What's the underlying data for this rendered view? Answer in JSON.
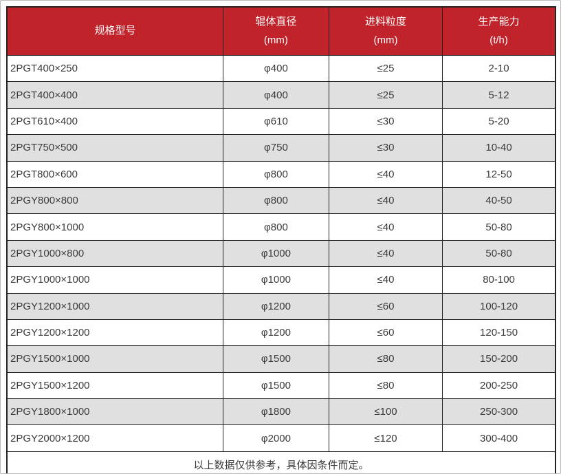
{
  "chart_data": {
    "type": "table",
    "title": "",
    "columns": [
      {
        "label": "规格型号",
        "unit": ""
      },
      {
        "label": "辊体直径",
        "unit": "(mm)"
      },
      {
        "label": "进料粒度",
        "unit": "(mm)"
      },
      {
        "label": "生产能力",
        "unit": "(t/h)"
      }
    ],
    "rows": [
      {
        "model": "2PGT400×250",
        "diameter": "φ400",
        "feed_size": "≤25",
        "capacity": "2-10"
      },
      {
        "model": "2PGT400×400",
        "diameter": "φ400",
        "feed_size": "≤25",
        "capacity": "5-12"
      },
      {
        "model": "2PGT610×400",
        "diameter": "φ610",
        "feed_size": "≤30",
        "capacity": "5-20"
      },
      {
        "model": "2PGT750×500",
        "diameter": "φ750",
        "feed_size": "≤30",
        "capacity": "10-40"
      },
      {
        "model": "2PGT800×600",
        "diameter": "φ800",
        "feed_size": "≤40",
        "capacity": "12-50"
      },
      {
        "model": "2PGY800×800",
        "diameter": "φ800",
        "feed_size": "≤40",
        "capacity": "40-50"
      },
      {
        "model": "2PGY800×1000",
        "diameter": "φ800",
        "feed_size": "≤40",
        "capacity": "50-80"
      },
      {
        "model": "2PGY1000×800",
        "diameter": "φ1000",
        "feed_size": "≤40",
        "capacity": "50-80"
      },
      {
        "model": "2PGY1000×1000",
        "diameter": "φ1000",
        "feed_size": "≤40",
        "capacity": "80-100"
      },
      {
        "model": "2PGY1200×1000",
        "diameter": "φ1200",
        "feed_size": "≤60",
        "capacity": "100-120"
      },
      {
        "model": "2PGY1200×1200",
        "diameter": "φ1200",
        "feed_size": "≤60",
        "capacity": "120-150"
      },
      {
        "model": "2PGY1500×1000",
        "diameter": "φ1500",
        "feed_size": "≤80",
        "capacity": "150-200"
      },
      {
        "model": "2PGY1500×1200",
        "diameter": "φ1500",
        "feed_size": "≤80",
        "capacity": "200-250"
      },
      {
        "model": "2PGY1800×1000",
        "diameter": "φ1800",
        "feed_size": "≤100",
        "capacity": "250-300"
      },
      {
        "model": "2PGY2000×1200",
        "diameter": "φ2000",
        "feed_size": "≤120",
        "capacity": "300-400"
      }
    ],
    "footer_note": "以上数据仅供参考，具体因条件而定。",
    "colors": {
      "header_bg": "#c1232b",
      "header_text": "#ffffff",
      "row_alt_bg": "#e0e0e0",
      "border": "#222222",
      "text": "#3a3a3a"
    },
    "layout": {
      "grid": "full-borders",
      "striped": true,
      "header_rows": 1,
      "footer_rows": 1
    }
  }
}
